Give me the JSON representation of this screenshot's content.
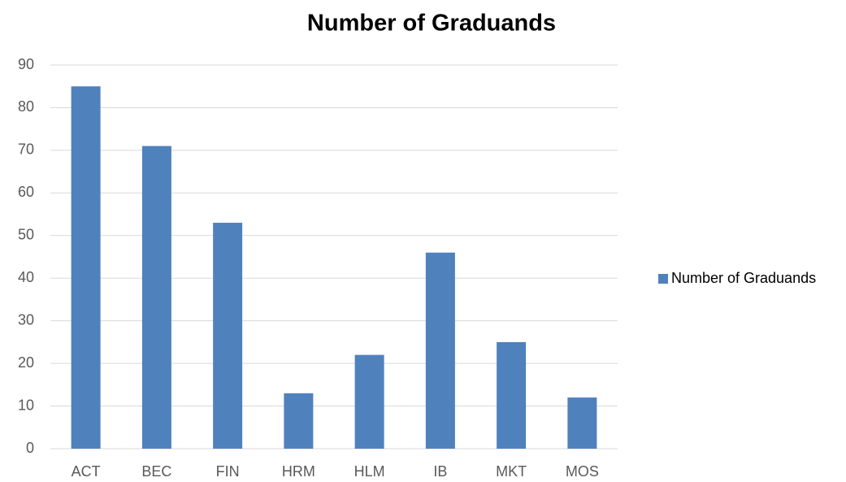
{
  "chart_data": {
    "type": "bar",
    "title": "Number of Graduands",
    "categories": [
      "ACT",
      "BEC",
      "FIN",
      "HRM",
      "HLM",
      "IB",
      "MKT",
      "MOS"
    ],
    "series": [
      {
        "name": "Number of Graduands",
        "color": "#4f81bd",
        "values": [
          85,
          71,
          53,
          13,
          22,
          46,
          25,
          12
        ]
      }
    ],
    "ylim": [
      0,
      90
    ],
    "yticks": [
      0,
      10,
      20,
      30,
      40,
      50,
      60,
      70,
      80,
      90
    ],
    "grid": true,
    "legend": "right"
  }
}
